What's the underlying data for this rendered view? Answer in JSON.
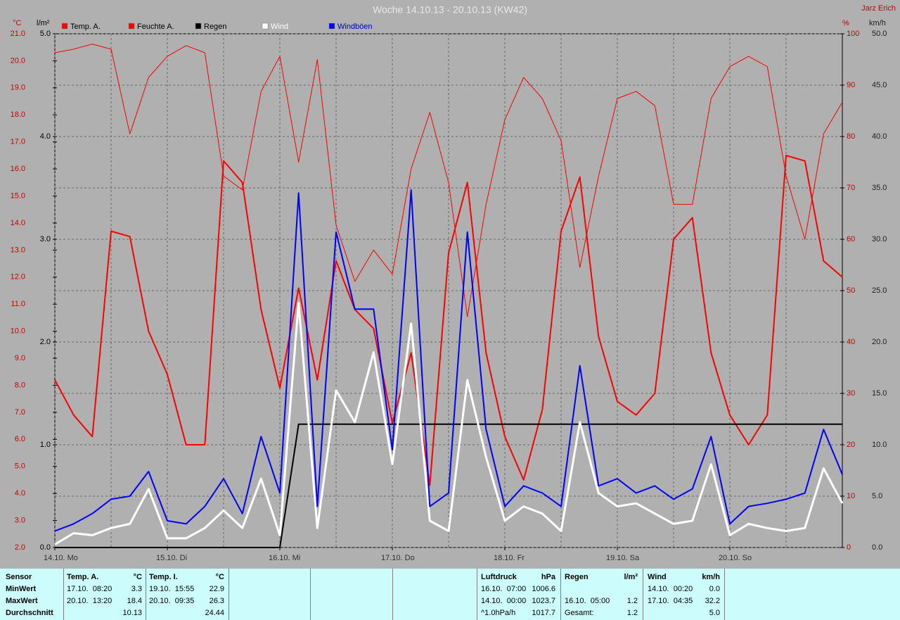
{
  "chart_data": {
    "type": "line",
    "title": "Woche 14.10.13 - 20.10.13 (KW42)",
    "author": "Jarz Erich",
    "y_label": "°C",
    "y4_label": "l/m²",
    "y2_label": "%",
    "y3_label": "km/h",
    "x": [
      0,
      4,
      8,
      12,
      16,
      20,
      24,
      28,
      32,
      36,
      40,
      44,
      48,
      52,
      56,
      60,
      64,
      68,
      72,
      76,
      80,
      84,
      88,
      92,
      96,
      100,
      104,
      108,
      112,
      116,
      120,
      124,
      128,
      132,
      136,
      140,
      144,
      148,
      152,
      156,
      160,
      164,
      168
    ],
    "xlim": [
      0,
      168
    ],
    "xticks": [
      {
        "value": 0,
        "label": "14.10. Mo"
      },
      {
        "value": 24,
        "label": "15.10. Di"
      },
      {
        "value": 48,
        "label": "16.10. Mi"
      },
      {
        "value": 72,
        "label": "17.10. Do"
      },
      {
        "value": 96,
        "label": "18.10. Fr"
      },
      {
        "value": 120,
        "label": "19.10. Sa"
      },
      {
        "value": 144,
        "label": "20.10. So"
      }
    ],
    "ylim": [
      2,
      21
    ],
    "yticks": [
      {
        "value": 2,
        "label": "2.0"
      },
      {
        "value": 3,
        "label": "3.0"
      },
      {
        "value": 4,
        "label": "4.0"
      },
      {
        "value": 5,
        "label": "5.0"
      },
      {
        "value": 6,
        "label": "6.0"
      },
      {
        "value": 7,
        "label": "7.0"
      },
      {
        "value": 8,
        "label": "8.0"
      },
      {
        "value": 9,
        "label": "9.0"
      },
      {
        "value": 10,
        "label": "10.0"
      },
      {
        "value": 11,
        "label": "11.0"
      },
      {
        "value": 12,
        "label": "12.0"
      },
      {
        "value": 13,
        "label": "13.0"
      },
      {
        "value": 14,
        "label": "14.0"
      },
      {
        "value": 15,
        "label": "15.0"
      },
      {
        "value": 16,
        "label": "16.0"
      },
      {
        "value": 17,
        "label": "17.0"
      },
      {
        "value": 18,
        "label": "18.0"
      },
      {
        "value": 19,
        "label": "19.0"
      },
      {
        "value": 20,
        "label": "20.0"
      },
      {
        "value": 21,
        "label": "21.0"
      }
    ],
    "y4lim": [
      0,
      5
    ],
    "y4ticks": [
      {
        "value": 0,
        "label": "0.0"
      },
      {
        "value": 1,
        "label": "1.0"
      },
      {
        "value": 2,
        "label": "2.0"
      },
      {
        "value": 3,
        "label": "3.0"
      },
      {
        "value": 4,
        "label": "4.0"
      },
      {
        "value": 5,
        "label": "5.0"
      }
    ],
    "y2lim": [
      0,
      100
    ],
    "y2ticks": [
      0,
      10,
      20,
      30,
      40,
      50,
      60,
      70,
      80,
      90,
      100
    ],
    "y3lim": [
      0,
      50
    ],
    "y3ticks": [
      {
        "value": 0,
        "label": "0.0"
      },
      {
        "value": 5,
        "label": "5.0"
      },
      {
        "value": 10,
        "label": "10.0"
      },
      {
        "value": 15,
        "label": "15.0"
      },
      {
        "value": 20,
        "label": "20.0"
      },
      {
        "value": 25,
        "label": "25.0"
      },
      {
        "value": 30,
        "label": "30.0"
      },
      {
        "value": 35,
        "label": "35.0"
      },
      {
        "value": 40,
        "label": "40.0"
      },
      {
        "value": 45,
        "label": "45.0"
      },
      {
        "value": 50,
        "label": "50.0"
      }
    ],
    "grid": true,
    "series": [
      {
        "name": "Temp. A.",
        "color": "#ff0000",
        "axis": "y",
        "width": 2,
        "values": [
          8.2,
          6.9,
          6.1,
          13.7,
          13.5,
          10.0,
          8.4,
          5.8,
          5.8,
          16.3,
          15.5,
          10.8,
          7.9,
          11.6,
          8.2,
          12.6,
          10.8,
          10.1,
          6.6,
          9.2,
          4.3,
          12.9,
          15.5,
          9.2,
          6.1,
          4.5,
          7.1,
          13.7,
          15.7,
          9.8,
          7.4,
          6.9,
          7.7,
          13.4,
          14.2,
          9.2,
          6.9,
          5.8,
          6.9,
          16.5,
          16.3,
          12.6,
          12.0
        ]
      },
      {
        "name": "Feuchte A.",
        "color": "#ff0000",
        "axis": "y2",
        "width": 1,
        "values": [
          96.3,
          97,
          98,
          97,
          80.5,
          91.5,
          95.6,
          97.7,
          96.3,
          72.3,
          69.6,
          88.8,
          95.6,
          75,
          95,
          62.7,
          51.8,
          57.9,
          53.2,
          73.7,
          84.7,
          71,
          44.9,
          66.8,
          83.3,
          91.5,
          87.4,
          79.2,
          54.5,
          72.3,
          87.4,
          88.8,
          86,
          66.8,
          66.8,
          87.4,
          93.6,
          95.6,
          93.6,
          72.3,
          60,
          80.5,
          86.7
        ]
      },
      {
        "name": "Regen",
        "color": "#000000",
        "axis": "y4",
        "width": 2,
        "values": [
          0,
          0,
          0,
          0,
          0,
          0,
          0,
          0,
          0,
          0,
          0,
          0,
          0,
          1.2,
          1.2,
          1.2,
          1.2,
          1.2,
          1.2,
          1.2,
          1.2,
          1.2,
          1.2,
          1.2,
          1.2,
          1.2,
          1.2,
          1.2,
          1.2,
          1.2,
          1.2,
          1.2,
          1.2,
          1.2,
          1.2,
          1.2,
          1.2,
          1.2,
          1.2,
          1.2,
          1.2,
          1.2,
          1.2
        ]
      },
      {
        "name": "Wind",
        "color": "#ffffff",
        "axis": "y3",
        "width": 3,
        "values": [
          0.3,
          1.4,
          1.2,
          1.9,
          2.3,
          5.7,
          0.9,
          0.9,
          1.9,
          3.6,
          1.9,
          6.7,
          1.2,
          23.8,
          1.9,
          15.3,
          12.2,
          19.0,
          8.1,
          21.8,
          2.6,
          1.6,
          16.3,
          8.8,
          2.6,
          4.0,
          3.3,
          1.6,
          12.2,
          5.3,
          4.0,
          4.3,
          3.3,
          2.3,
          2.6,
          8.1,
          1.2,
          2.3,
          1.9,
          1.6,
          1.9,
          7.7,
          4.3
        ]
      },
      {
        "name": "Windböen",
        "color": "#0000ff",
        "axis": "y3",
        "width": 2,
        "values": [
          1.6,
          2.3,
          3.3,
          4.7,
          5.0,
          7.4,
          2.6,
          2.3,
          4.0,
          6.7,
          3.3,
          10.8,
          5.3,
          34.5,
          4.0,
          30.7,
          23.2,
          23.2,
          9.5,
          34.8,
          4.0,
          5.3,
          30.7,
          11.5,
          4.0,
          6.0,
          5.3,
          4.0,
          17.7,
          6.0,
          6.7,
          5.3,
          6.0,
          4.7,
          5.7,
          10.8,
          2.3,
          4.0,
          4.3,
          4.7,
          5.3,
          11.5,
          7.1
        ]
      }
    ]
  },
  "table": {
    "row_labels": [
      "Sensor",
      "MinWert",
      "MaxWert",
      "Durchschnitt"
    ],
    "columns": [
      {
        "header": "Temp. A.",
        "unit": "°C",
        "rows": [
          [
            "17.10.  08:20",
            "3.3"
          ],
          [
            "20.10.  13:20",
            "18.4"
          ],
          [
            null,
            "10.13"
          ]
        ]
      },
      {
        "header": "Temp. I.",
        "unit": "°C",
        "rows": [
          [
            "19.10.  15:55",
            "22.9"
          ],
          [
            "20.10.  09:35",
            "26.3"
          ],
          [
            null,
            "24.44"
          ]
        ]
      },
      {
        "header": "Luftdruck",
        "unit": "hPa",
        "rows": [
          [
            "16.10.  07:00",
            "1006.6"
          ],
          [
            "14.10.  00:00",
            "1023.7"
          ],
          [
            "^1.0hPa/h",
            "1017.7"
          ]
        ]
      },
      {
        "header": "Regen",
        "unit": "l/m²",
        "rows": [
          [
            null,
            null
          ],
          [
            "16.10.  05:00",
            "1.2"
          ],
          [
            "Gesamt:",
            "1.2"
          ]
        ]
      },
      {
        "header": "Wind",
        "unit": "km/h",
        "rows": [
          [
            "14.10.  00:20",
            "0.0"
          ],
          [
            "17.10.  04:35",
            "32.2"
          ],
          [
            null,
            "5.0"
          ]
        ]
      }
    ]
  }
}
